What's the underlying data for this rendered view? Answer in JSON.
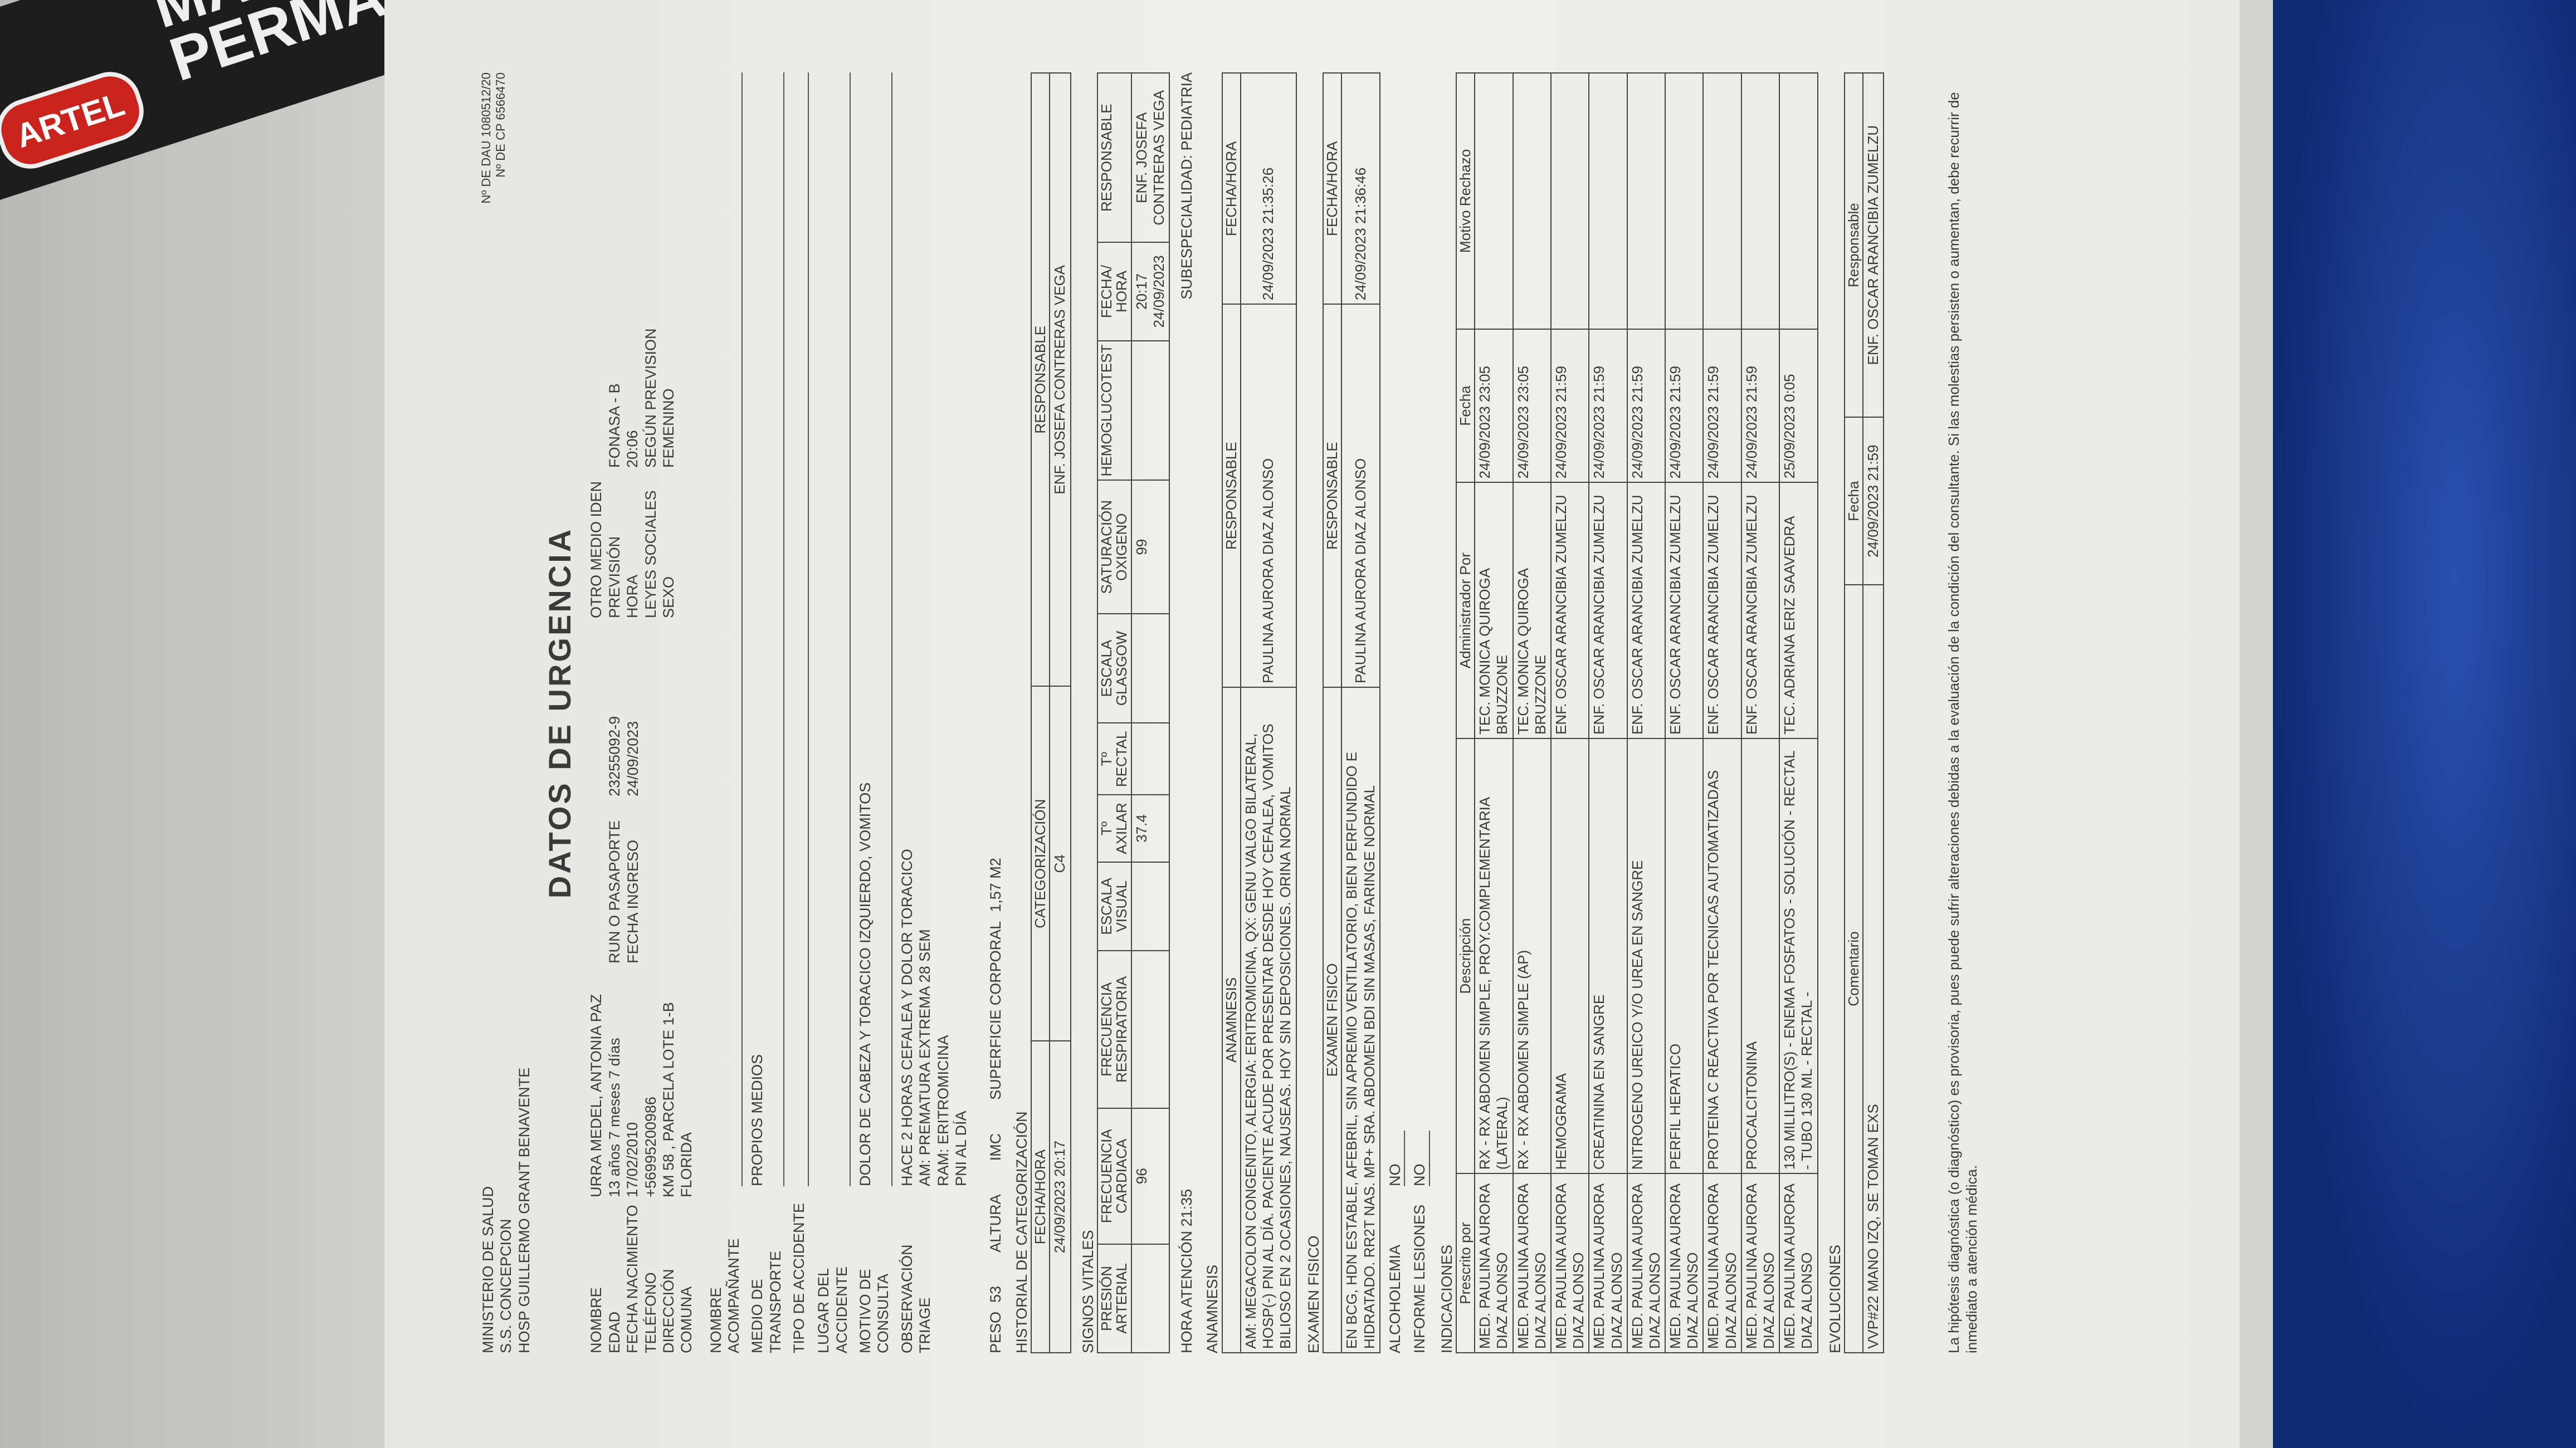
{
  "marker": {
    "brand": "ARTEL",
    "text": [
      "MARCADO",
      "PERMANE"
    ]
  },
  "header": {
    "lines": [
      "MINISTERIO DE SALUD",
      "S.S. CONCEPCION",
      "HOSP GUILLERMO GRANT BENAVENTE"
    ],
    "doc_numbers": [
      "Nº DE DAU 1080512/20",
      "Nº DE CP 6566470"
    ]
  },
  "title": "DATOS DE URGENCIA",
  "patient": {
    "columns": [
      [
        {
          "label": "NOMBRE",
          "value": "URRA MEDEL, ANTONIA PAZ"
        },
        {
          "label": "EDAD",
          "value": "13 años 7 meses 7 días"
        },
        {
          "label": "FECHA NACIMIENTO",
          "value": "17/02/2010"
        },
        {
          "label": "TELÉFONO",
          "value": "+56995200986"
        },
        {
          "label": "DIRECCIÓN",
          "value": "KM 58 , PARCELA LOTE 1-B"
        },
        {
          "label": "COMUNA",
          "value": "FLORIDA"
        }
      ],
      [
        {
          "label": "RUN O PASAPORTE",
          "value": "23255092-9"
        },
        {
          "label": "FECHA INGRESO",
          "value": "24/09/2023"
        }
      ],
      [
        {
          "label": "OTRO MEDIO IDEN"
        },
        {
          "label": "PREVISIÓN",
          "value": "FONASA - B"
        },
        {
          "label": "HORA",
          "value": "20:06"
        },
        {
          "label": "LEYES SOCIALES",
          "value": "SEGÚN PREVISION"
        },
        {
          "label": "SEXO",
          "value": "FEMENINO"
        }
      ]
    ]
  },
  "fields": [
    {
      "label": "NOMBRE ACOMPAÑANTE"
    },
    {
      "label": "MEDIO DE TRANSPORTE",
      "value": [
        "PROPIOS MEDIOS"
      ]
    },
    {
      "label": "TIPO DE ACCIDENTE"
    },
    {
      "label": "LUGAR DEL ACCIDENTE"
    },
    {
      "label": "MOTIVO DE CONSULTA",
      "value": [
        "DOLOR DE CABEZA Y TORACICO IZQUIERDO, VOMITOS"
      ]
    },
    {
      "label": "OBSERVACIÓN TRIAGE",
      "value": [
        "HACE 2 HORAS CEFALEA Y DOLOR TORACICO",
        "AM: PREMATURA EXTREMA 28 SEM",
        "RAM: ERITROMICINA",
        "PNI AL DÍA"
      ]
    }
  ],
  "measures": [
    {
      "label": "PESO",
      "value": 53
    },
    {
      "label": "ALTURA"
    },
    {
      "label": "IMC"
    },
    {
      "label": "SUPERFICIE CORPORAL",
      "value": "1,57 M2"
    }
  ],
  "categorization": {
    "title": "HISTORIAL DE CATEGORIZACIÓN",
    "table": {
      "headers": [
        "FECHA/HORA",
        "CATEGORIZACIÓN",
        "RESPONSABLE"
      ],
      "rows": [
        [
          "24/09/2023 20:17",
          "C4",
          "ENF. JOSEFA CONTRERAS VEGA"
        ]
      ]
    }
  },
  "vitals": {
    "title": "SIGNOS VITALES",
    "table": {
      "headers": [
        "PRESIÓN ARTERIAL",
        "FRECUENCIA CARDIACA",
        "FRECUENCIA RESPIRATORIA",
        "ESCALA VISUAL",
        "Tº AXILAR",
        "Tº RECTAL",
        "ESCALA GLASGOW",
        "SATURACIÓN OXIGENO",
        "HEMOGLUCOTEST",
        "FECHA/ HORA",
        "RESPONSABLE"
      ],
      "rows": [
        [
          null,
          96,
          null,
          null,
          37.4,
          null,
          null,
          99,
          null,
          "20:17 24/09/2023",
          "ENF. JOSEFA CONTRERAS VEGA"
        ]
      ]
    }
  },
  "attention": {
    "label": "HORA ATENCIÓN",
    "value": "21:35",
    "subspecialty": "SUBESPECIALIDAD: PEDIATRIA"
  },
  "anamnesis": {
    "title": "ANAMNESIS",
    "table": {
      "headers": [
        "ANAMNESIS",
        "RESPONSABLE",
        "FECHA/HORA"
      ],
      "rows": [
        [
          "AM: MEGACOLON CONGENITO, ALERGIA: ERITROMICINA, QX: GENU VALGO BILATERAL, HOSP(-) PNI AL DÍA. PACIENTE ACUDE POR PRESENTAR DESDE HOY CEFALEA, VOMITOS BILIOSO EN 2 OCASIONES, NAUSEAS. HOY SIN DEPOSICIONES. ORINA NORMAL",
          "PAULINA AURORA DIAZ ALONSO",
          "24/09/2023 21:35:26"
        ]
      ]
    }
  },
  "exam": {
    "title": "EXAMEN FISICO",
    "table": {
      "headers": [
        "EXAMEN FISICO",
        "RESPONSABLE",
        "FECHA/HORA"
      ],
      "rows": [
        [
          "EN BCG, HDN ESTABLE, AFEBRIL, SIN APREMIO VENTILATORIO, BIEN PERFUNDIDO E HIDRATADO. RR2T NAS. MP+ SRA. ABDOMEN BDI SIN MASAS, FARINGE NORMAL",
          "PAULINA AURORA DIAZ ALONSO",
          "24/09/2023 21:36:46"
        ]
      ]
    }
  },
  "flags": [
    {
      "label": "ALCOHOLEMIA",
      "value": "NO"
    },
    {
      "label": "INFORME LESIONES",
      "value": "NO"
    }
  ],
  "indications": {
    "title": "INDICACIONES",
    "table": {
      "headers": [
        "Prescrito por",
        "Descripción",
        "Administrador Por",
        "Fecha",
        "Motivo Rechazo"
      ],
      "rows": [
        [
          "MED. PAULINA AURORA DIAZ ALONSO",
          "RX - RX ABDOMEN SIMPLE, PROY.COMPLEMENTARIA (LATERAL)",
          "TEC. MONICA QUIROGA BRUZZONE",
          "24/09/2023 23:05",
          null
        ],
        [
          "MED. PAULINA AURORA DIAZ ALONSO",
          "RX - RX ABDOMEN SIMPLE (AP)",
          "TEC. MONICA QUIROGA BRUZZONE",
          "24/09/2023 23:05",
          null
        ],
        [
          "MED. PAULINA AURORA DIAZ ALONSO",
          "HEMOGRAMA",
          "ENF. OSCAR ARANCIBIA ZUMELZU",
          "24/09/2023 21:59",
          null
        ],
        [
          "MED. PAULINA AURORA DIAZ ALONSO",
          "CREATININA EN SANGRE",
          "ENF. OSCAR ARANCIBIA ZUMELZU",
          "24/09/2023 21:59",
          null
        ],
        [
          "MED. PAULINA AURORA DIAZ ALONSO",
          "NITROGENO UREICO Y/O UREA EN SANGRE",
          "ENF. OSCAR ARANCIBIA ZUMELZU",
          "24/09/2023 21:59",
          null
        ],
        [
          "MED. PAULINA AURORA DIAZ ALONSO",
          "PERFIL HEPATICO",
          "ENF. OSCAR ARANCIBIA ZUMELZU",
          "24/09/2023 21:59",
          null
        ],
        [
          "MED. PAULINA AURORA DIAZ ALONSO",
          "PROTEINA C REACTIVA POR TECNICAS AUTOMATIZADAS",
          "ENF. OSCAR ARANCIBIA ZUMELZU",
          "24/09/2023 21:59",
          null
        ],
        [
          "MED. PAULINA AURORA DIAZ ALONSO",
          "PROCALCITONINA",
          "ENF. OSCAR ARANCIBIA ZUMELZU",
          "24/09/2023 21:59",
          null
        ],
        [
          "MED. PAULINA AURORA DIAZ ALONSO",
          "130 MILILITRO(S) - ENEMA FOSFATOS - SOLUCIÓN - RECTAL - TUBO 130 ML - RECTAL -",
          "TEC. ADRIANA ERIZ SAAVEDRA",
          "25/09/2023 0:05",
          null
        ]
      ]
    }
  },
  "evolutions": {
    "title": "EVOLUCIONES",
    "table": {
      "headers": [
        "Comentario",
        "Fecha",
        "Responsable"
      ],
      "rows": [
        [
          "VVP#22 MANO IZQ, SE TOMAN EXS",
          "24/09/2023 21:59",
          "ENF. OSCAR ARANCIBIA ZUMELZU"
        ]
      ]
    }
  },
  "footer": "La hipótesis diagnóstica (o diagnóstico) es provisoria, pues puede sufrir alteraciones debidas a la evaluación de la condición del consultante. Si las molestias persisten o aumentan, debe recurrir de inmediato a atención médica."
}
